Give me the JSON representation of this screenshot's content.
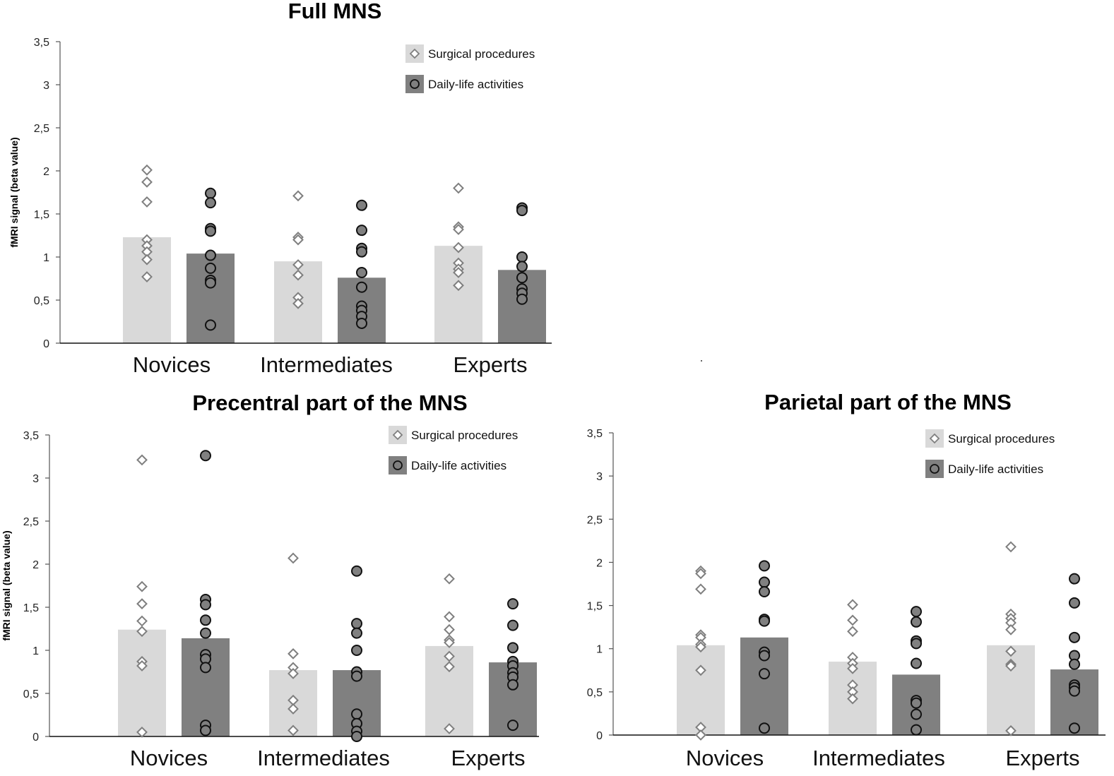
{
  "chart_data": [
    {
      "type": "bar",
      "title": "Full MNS",
      "ylabel": "fMRI signal (beta value)",
      "xlabel": "",
      "ylim": [
        0,
        3.5
      ],
      "yticks": [
        "0",
        "0,5",
        "1",
        "1,5",
        "2",
        "2,5",
        "3",
        "3,5"
      ],
      "categories": [
        "Novices",
        "Intermediates",
        "Experts"
      ],
      "legend_position": "top-right",
      "series": [
        {
          "name": "Surgical procedures",
          "color": "#d9d9d9",
          "marker": "diamond",
          "values": [
            1.23,
            0.95,
            1.13
          ],
          "points": [
            [
              2.01,
              1.87,
              1.64,
              1.2,
              1.13,
              1.06,
              0.97,
              0.77
            ],
            [
              1.71,
              1.23,
              1.2,
              0.91,
              0.79,
              0.53,
              0.46
            ],
            [
              1.8,
              1.35,
              1.32,
              1.11,
              0.93,
              0.86,
              0.82,
              0.67
            ]
          ]
        },
        {
          "name": "Daily-life activities",
          "color": "#808080",
          "marker": "circle",
          "values": [
            1.04,
            0.76,
            0.85
          ],
          "points": [
            [
              1.74,
              1.63,
              1.33,
              1.3,
              1.02,
              0.87,
              0.73,
              0.7,
              0.21
            ],
            [
              1.6,
              1.31,
              1.1,
              1.06,
              0.82,
              0.65,
              0.43,
              0.38,
              0.31,
              0.23
            ],
            [
              1.57,
              1.54,
              1.0,
              0.89,
              0.76,
              0.63,
              0.58,
              0.51
            ]
          ]
        }
      ]
    },
    {
      "type": "bar",
      "title": "Precentral part of the MNS",
      "ylabel": "fMRI signal (beta value)",
      "xlabel": "",
      "ylim": [
        0,
        3.5
      ],
      "yticks": [
        "0",
        "0,5",
        "1",
        "1,5",
        "2",
        "2,5",
        "3",
        "3,5"
      ],
      "categories": [
        "Novices",
        "Intermediates",
        "Experts"
      ],
      "legend_position": "top-right",
      "series": [
        {
          "name": "Surgical procedures",
          "color": "#d9d9d9",
          "marker": "diamond",
          "values": [
            1.24,
            0.77,
            1.05
          ],
          "points": [
            [
              3.21,
              1.74,
              1.54,
              1.34,
              1.22,
              0.87,
              0.82,
              0.05
            ],
            [
              2.07,
              0.96,
              0.8,
              0.73,
              0.42,
              0.32,
              0.07
            ],
            [
              1.83,
              1.39,
              1.24,
              1.12,
              1.09,
              0.93,
              0.81,
              0.09
            ]
          ]
        },
        {
          "name": "Daily-life activities",
          "color": "#808080",
          "marker": "circle",
          "values": [
            1.14,
            0.77,
            0.86
          ],
          "points": [
            [
              3.26,
              1.59,
              1.53,
              1.35,
              1.2,
              0.95,
              0.9,
              0.8,
              0.13,
              0.07
            ],
            [
              1.92,
              1.31,
              1.2,
              1.0,
              0.75,
              0.7,
              0.26,
              0.15,
              0.06,
              0.0
            ],
            [
              1.54,
              1.29,
              1.03,
              0.87,
              0.82,
              0.74,
              0.69,
              0.6,
              0.13
            ]
          ]
        }
      ]
    },
    {
      "type": "bar",
      "title": "Parietal part of the MNS",
      "ylabel": "",
      "xlabel": "",
      "ylim": [
        0,
        3.5
      ],
      "yticks": [
        "0",
        "0,5",
        "1",
        "1,5",
        "2",
        "2,5",
        "3",
        "3,5"
      ],
      "categories": [
        "Novices",
        "Intermediates",
        "Experts"
      ],
      "legend_position": "top-right",
      "series": [
        {
          "name": "Surgical procedures",
          "color": "#d9d9d9",
          "marker": "diamond",
          "values": [
            1.04,
            0.85,
            1.04
          ],
          "points": [
            [
              1.9,
              1.87,
              1.69,
              1.16,
              1.13,
              1.05,
              1.02,
              0.75,
              0.09,
              0.0
            ],
            [
              1.51,
              1.33,
              1.2,
              0.9,
              0.83,
              0.77,
              0.58,
              0.5,
              0.42
            ],
            [
              2.18,
              1.4,
              1.35,
              1.3,
              1.22,
              0.97,
              0.82,
              0.8,
              0.05
            ]
          ]
        },
        {
          "name": "Daily-life activities",
          "color": "#808080",
          "marker": "circle",
          "values": [
            1.13,
            0.7,
            0.76
          ],
          "points": [
            [
              1.96,
              1.77,
              1.66,
              1.34,
              1.32,
              0.96,
              0.92,
              0.71,
              0.08
            ],
            [
              1.43,
              1.31,
              1.09,
              1.06,
              0.83,
              0.4,
              0.37,
              0.24,
              0.06
            ],
            [
              1.81,
              1.53,
              1.13,
              0.92,
              0.82,
              0.58,
              0.55,
              0.51,
              0.08
            ]
          ]
        }
      ]
    }
  ]
}
